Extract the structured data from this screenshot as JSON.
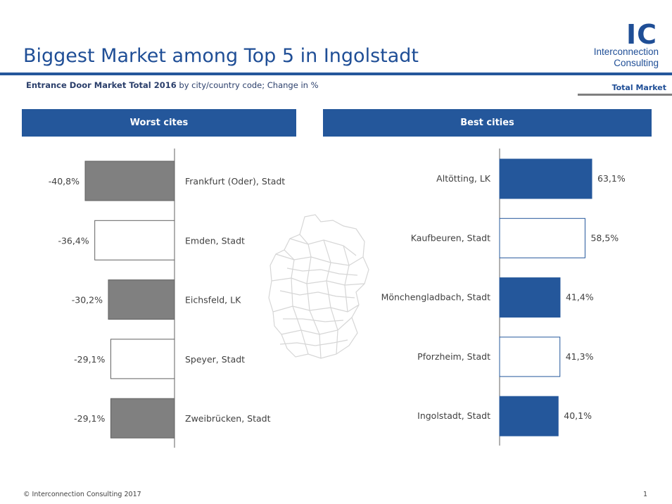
{
  "title": "Biggest Market among Top 5 in Ingolstadt",
  "subtitle": {
    "bold": "Entrance Door Market Total 2016",
    "rest": " by city/country code; Change in %"
  },
  "logo": {
    "mark": "IC",
    "line1": "Interconnection",
    "line2": "Consulting"
  },
  "tag": "Total Market",
  "footer": "© Interconnection Consulting 2017",
  "page_number": "1",
  "colors": {
    "brand": "#24579b",
    "gray": "#808080"
  },
  "chart_data": [
    {
      "type": "bar",
      "title": "Worst cites",
      "orientation": "horizontal",
      "categories": [
        "Frankfurt (Oder), Stadt",
        "Emden, Stadt",
        "Eichsfeld, LK",
        "Speyer, Stadt",
        "Zweibrücken, Stadt"
      ],
      "values": [
        -40.8,
        -36.4,
        -30.2,
        -29.1,
        -29.1
      ],
      "labels": [
        "-40,8%",
        "-36,4%",
        "-30,2%",
        "-29,1%",
        "-29,1%"
      ],
      "fill": [
        "#808080",
        "#ffffff",
        "#808080",
        "#ffffff",
        "#808080"
      ],
      "xlim": [
        -45,
        0
      ]
    },
    {
      "type": "bar",
      "title": "Best cities",
      "orientation": "horizontal",
      "categories": [
        "Altötting, LK",
        "Kaufbeuren, Stadt",
        "Mönchengladbach, Stadt",
        "Pforzheim, Stadt",
        "Ingolstadt, Stadt"
      ],
      "values": [
        63.1,
        58.5,
        41.4,
        41.3,
        40.1
      ],
      "labels": [
        "63,1%",
        "58,5%",
        "41,4%",
        "41,3%",
        "40,1%"
      ],
      "fill": [
        "#24579b",
        "#ffffff",
        "#24579b",
        "#ffffff",
        "#24579b"
      ],
      "xlim": [
        0,
        65
      ]
    }
  ]
}
